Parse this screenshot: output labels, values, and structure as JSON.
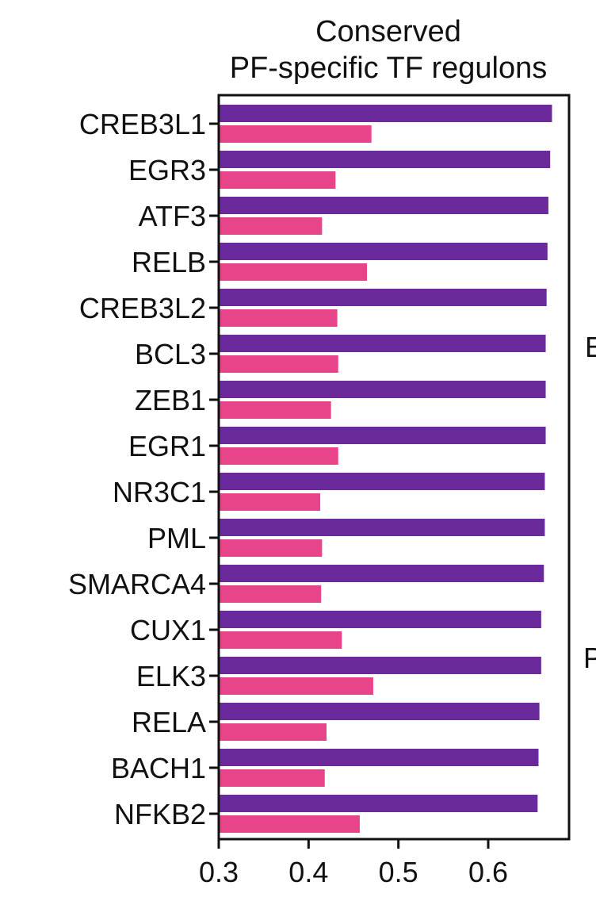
{
  "chart_data": {
    "type": "bar",
    "orientation": "horizontal",
    "title_lines": [
      "Conserved",
      "PF-specific TF regulons"
    ],
    "xlabel": "",
    "ylabel": "",
    "xlim": [
      0.3,
      0.69
    ],
    "x_ticks": [
      0.3,
      0.4,
      0.5,
      0.6
    ],
    "x_tick_labels": [
      "0.3",
      "0.4",
      "0.5",
      "0.6"
    ],
    "grid": false,
    "legend": "none",
    "categories": [
      "CREB3L1",
      "EGR3",
      "ATF3",
      "RELB",
      "CREB3L2",
      "BCL3",
      "ZEB1",
      "EGR1",
      "NR3C1",
      "PML",
      "SMARCA4",
      "CUX1",
      "ELK3",
      "RELA",
      "BACH1",
      "NFKB2"
    ],
    "series": [
      {
        "color": "#6b2a9b",
        "values": [
          0.671,
          0.669,
          0.667,
          0.666,
          0.665,
          0.664,
          0.664,
          0.664,
          0.663,
          0.663,
          0.662,
          0.659,
          0.659,
          0.657,
          0.656,
          0.655
        ]
      },
      {
        "color": "#e8448a",
        "values": [
          0.47,
          0.43,
          0.415,
          0.465,
          0.432,
          0.433,
          0.425,
          0.433,
          0.413,
          0.415,
          0.414,
          0.437,
          0.472,
          0.42,
          0.418,
          0.457
        ]
      }
    ]
  },
  "edge_letters": [
    "E",
    "P"
  ]
}
